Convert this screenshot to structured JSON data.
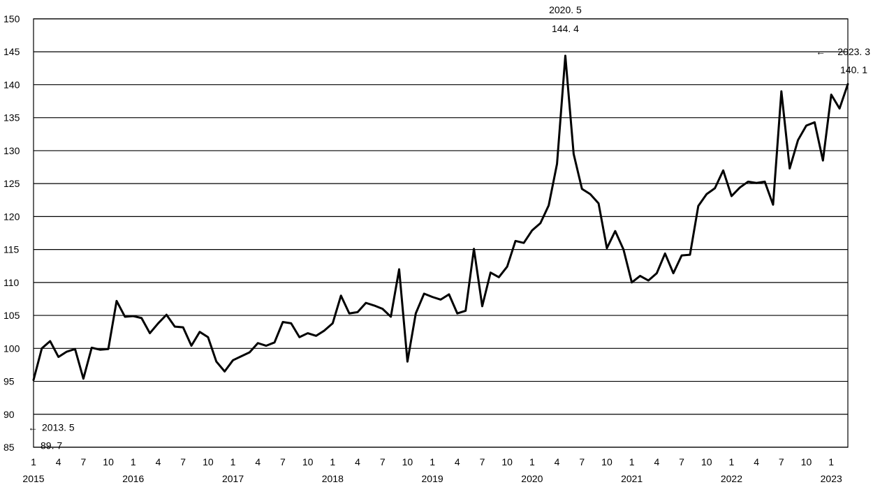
{
  "chart_data": {
    "type": "line",
    "title": "",
    "xlabel": "",
    "ylabel": "",
    "ylim": [
      85,
      150
    ],
    "y_ticks": [
      85,
      90,
      95,
      100,
      105,
      110,
      115,
      120,
      125,
      130,
      135,
      140,
      145,
      150
    ],
    "grid": true,
    "start": "2015-01",
    "x_month_tick_labels": [
      "1",
      "4",
      "7",
      "10"
    ],
    "year_labels": [
      "2015",
      "2016",
      "2017",
      "2018",
      "2019",
      "2020",
      "2021",
      "2022",
      "2023"
    ],
    "series": [
      {
        "values": [
          95.2,
          100.0,
          101.1,
          98.7,
          99.5,
          99.9,
          95.4,
          100.1,
          99.8,
          99.9,
          107.2,
          104.8,
          104.9,
          104.6,
          102.3,
          103.8,
          105.1,
          103.3,
          103.2,
          100.4,
          102.5,
          101.7,
          98.0,
          96.5,
          98.2,
          98.8,
          99.4,
          100.8,
          100.4,
          100.9,
          104.0,
          103.8,
          101.7,
          102.3,
          101.9,
          102.7,
          103.8,
          108.0,
          105.3,
          105.5,
          106.9,
          106.5,
          106.0,
          104.8,
          112.0,
          98.0,
          105.3,
          108.3,
          107.8,
          107.4,
          108.2,
          105.3,
          105.7,
          115.1,
          106.4,
          111.5,
          110.8,
          112.4,
          116.3,
          116.0,
          117.9,
          119.0,
          121.7,
          128.0,
          144.4,
          129.5,
          124.2,
          123.4,
          122.0,
          115.2,
          117.8,
          115.0,
          110.0,
          111.0,
          110.3,
          111.4,
          114.4,
          111.4,
          114.1,
          114.2,
          121.6,
          123.4,
          124.3,
          127.0,
          123.1,
          124.4,
          125.3,
          125.1,
          125.3,
          121.8,
          139.0,
          127.3,
          131.6,
          133.8,
          134.3,
          128.5,
          138.5,
          136.4,
          140.1
        ]
      }
    ],
    "annotations": [
      {
        "date": "2020. 5",
        "value": "144. 4",
        "index": 64,
        "placement": "top"
      },
      {
        "date": "2023. 3",
        "value": "140. 1",
        "index": 98,
        "placement": "right",
        "y": 145
      },
      {
        "date": "2013. 5",
        "value": "89. 7",
        "index": 0,
        "placement": "left-bottom",
        "y": 88
      }
    ]
  }
}
